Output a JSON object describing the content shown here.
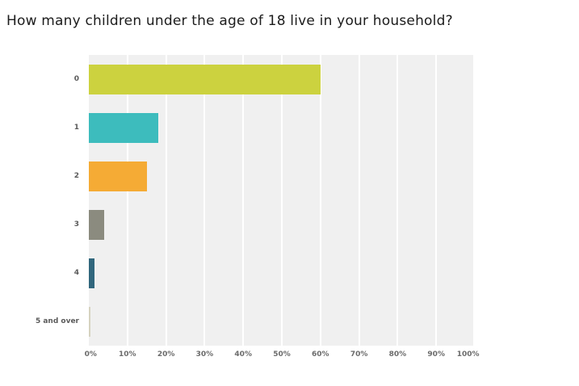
{
  "page": {
    "title": "How many children under the age of 18 live in your household?"
  },
  "chart_data": {
    "type": "bar",
    "orientation": "horizontal",
    "title": "How many children under the age of 18 live in your household?",
    "categories": [
      "0",
      "1",
      "2",
      "3",
      "4",
      "5 and over"
    ],
    "values": [
      60,
      18,
      15,
      4,
      1.5,
      0.5
    ],
    "unit": "percent",
    "bar_colors": [
      "#ccd23f",
      "#3dbcbd",
      "#f5ab35",
      "#8b8b7f",
      "#31677d",
      "#d6d3c0"
    ],
    "xlabel": "",
    "ylabel": "",
    "xlim": [
      0,
      100
    ],
    "xticks": [
      "0%",
      "10%",
      "20%",
      "30%",
      "40%",
      "50%",
      "60%",
      "70%",
      "80%",
      "90%",
      "100%"
    ],
    "grid": "vertical white gridlines every 10% on light gray plot background",
    "plot_background": "#f0f0f0",
    "legend": "none"
  }
}
